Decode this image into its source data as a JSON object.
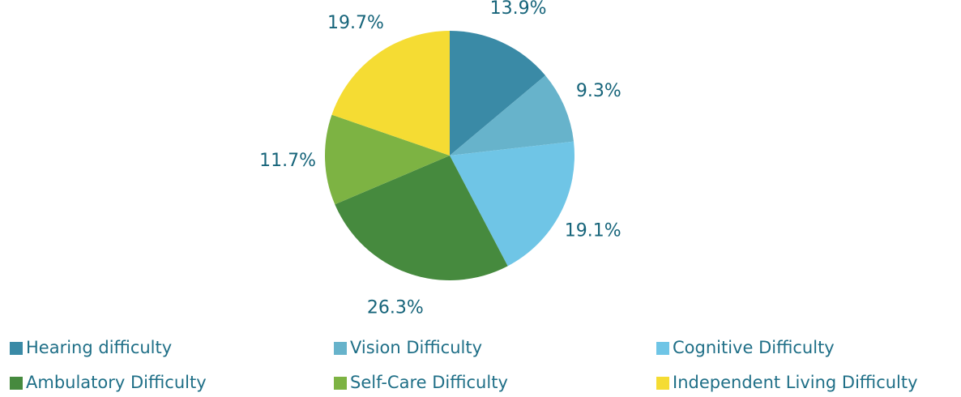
{
  "chart_data": {
    "type": "pie",
    "categories": [
      "Hearing difficulty",
      "Vision Difficulty",
      "Cognitive Difficulty",
      "Ambulatory Difficulty",
      "Self-Care Difficulty",
      "Independent Living Difficulty"
    ],
    "values": [
      13.9,
      9.3,
      19.1,
      26.3,
      11.7,
      19.7
    ],
    "value_labels": [
      "13.9%",
      "9.3%",
      "19.1%",
      "26.3%",
      "11.7%",
      "19.7%"
    ],
    "colors": [
      "#3a8aa6",
      "#67b3cb",
      "#6fc5e6",
      "#468a3e",
      "#7db343",
      "#f5dc33"
    ],
    "legend": "bottom"
  }
}
